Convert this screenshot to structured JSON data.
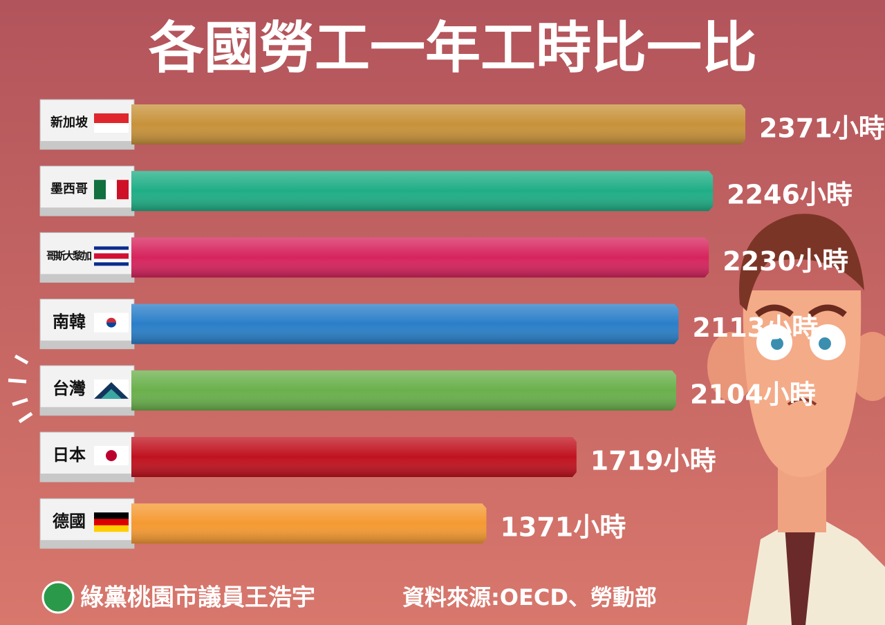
{
  "chart_data": {
    "type": "bar",
    "orientation": "horizontal",
    "title": "各國勞工一年工時比一比",
    "categories": [
      "新加坡",
      "墨西哥",
      "哥斯大黎加",
      "南韓",
      "台灣",
      "日本",
      "德國"
    ],
    "values": [
      2371,
      2246,
      2230,
      2113,
      2104,
      1719,
      1371
    ],
    "value_labels": [
      "2371小時",
      "2246小時",
      "2230小時",
      "2113小時",
      "2104小時",
      "1719小時",
      "1371小時"
    ],
    "colors": [
      "#c8923a",
      "#1fae86",
      "#d6245e",
      "#2a7fc8",
      "#6ab04c",
      "#c0121f",
      "#f59a32"
    ],
    "footer": "綠黨桃園市議員王浩宇",
    "source": "資料來源:OECD、勞動部"
  }
}
